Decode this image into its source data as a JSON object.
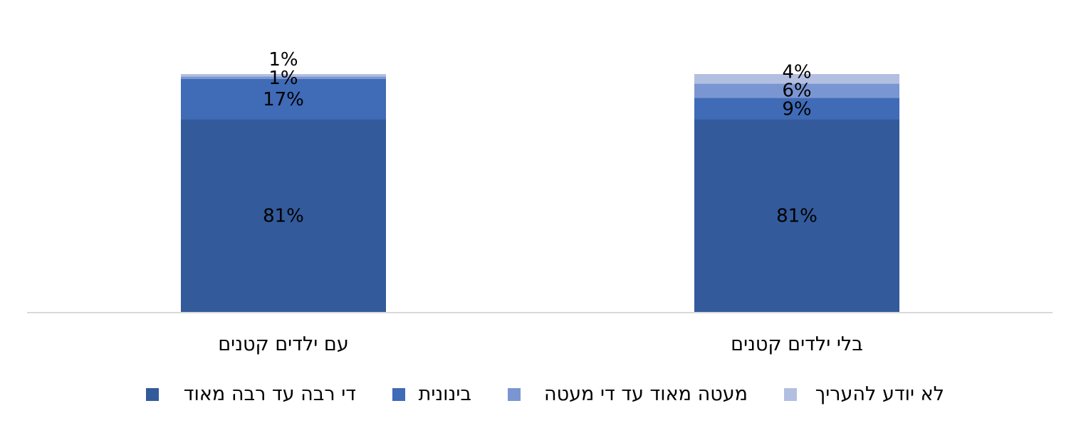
{
  "chart_data": {
    "type": "bar",
    "stacked": true,
    "categories": [
      "עם ילדים קטנים",
      "בלי ילדים קטנים"
    ],
    "series": [
      {
        "name": "די רבה עד רבה מאוד",
        "values": [
          81,
          81
        ],
        "labels": [
          "81%",
          "81%"
        ],
        "color": "#335A9A"
      },
      {
        "name": "בינונית",
        "values": [
          17,
          9
        ],
        "labels": [
          "17%",
          "9%"
        ],
        "color": "#3F6BB7"
      },
      {
        "name": "מעטה מאוד עד די מעטה",
        "values": [
          1,
          6
        ],
        "labels": [
          "1%",
          "6%"
        ],
        "color": "#7A96D2"
      },
      {
        "name": "לא יודע להעריך",
        "values": [
          1,
          4
        ],
        "labels": [
          "1%",
          "4%"
        ],
        "color": "#B3BFE1"
      }
    ],
    "ylim": [
      0,
      100
    ],
    "grid": false,
    "legend_position": "bottom",
    "axis_color": "#D9D9D9"
  }
}
